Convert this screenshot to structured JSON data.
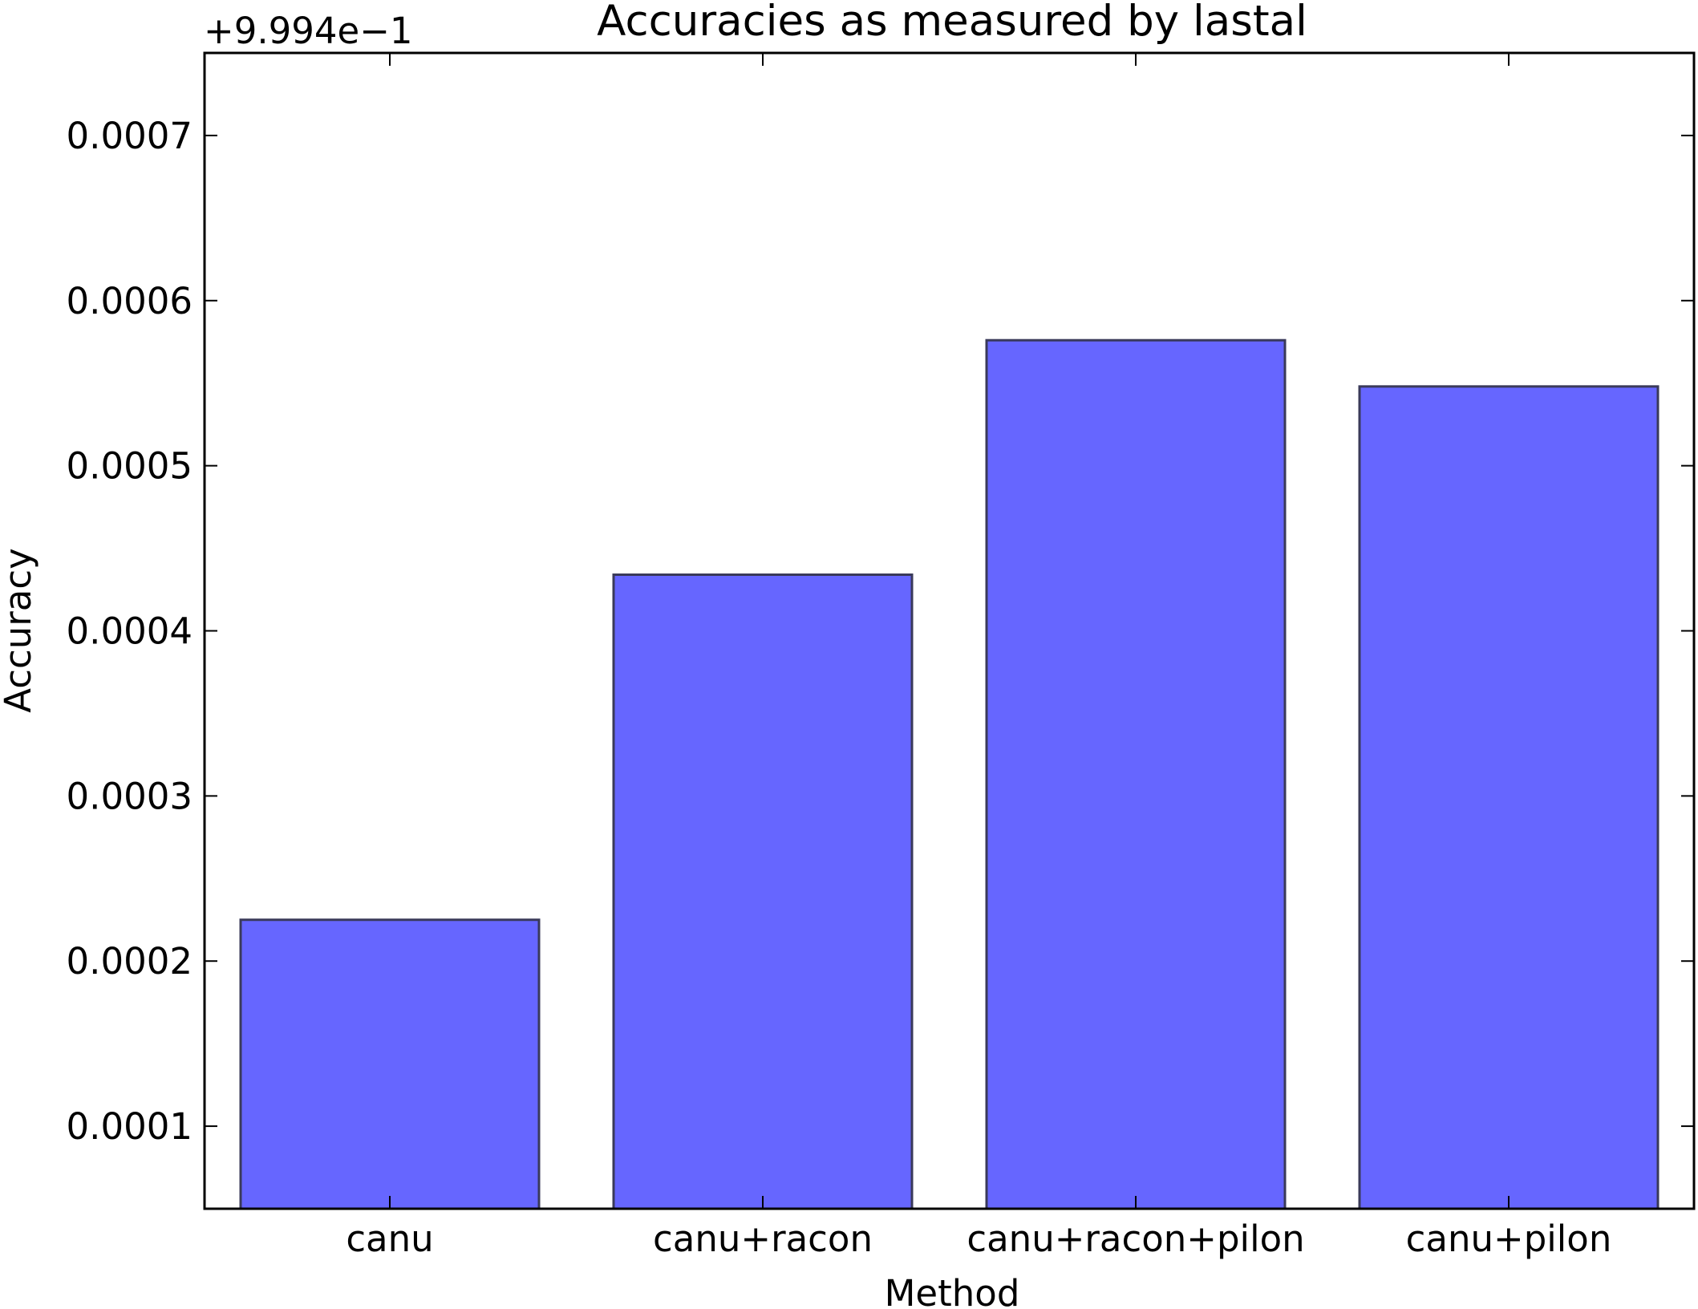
{
  "chart_data": {
    "type": "bar",
    "title": "Accuracies as measured by lastal",
    "xlabel": "Method",
    "ylabel": "Accuracy",
    "y_offset_label": "+9.994e−1",
    "categories": [
      "canu",
      "canu+racon",
      "canu+racon+pilon",
      "canu+pilon"
    ],
    "values": [
      0.000225,
      0.000434,
      0.000576,
      0.000548
    ],
    "ylim": [
      5e-05,
      0.00075
    ],
    "yticks": [
      0.0001,
      0.0002,
      0.0003,
      0.0004,
      0.0005,
      0.0006,
      0.0007
    ],
    "ytick_labels": [
      "0.0001",
      "0.0002",
      "0.0003",
      "0.0004",
      "0.0005",
      "0.0006",
      "0.0007"
    ],
    "grid": false,
    "bar_color": "#6666ff",
    "bar_edge_color": "#3a3a5a"
  }
}
